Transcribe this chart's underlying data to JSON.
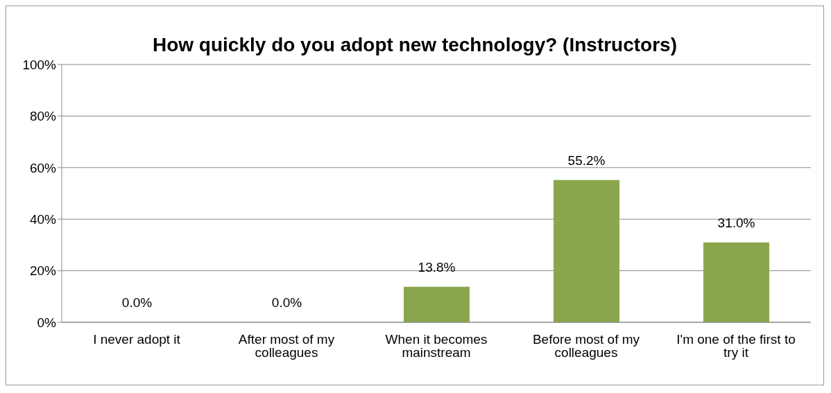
{
  "chart_data": {
    "type": "bar",
    "title": "How quickly do you adopt new technology? (Instructors)",
    "categories": [
      "I never adopt it",
      "After most of my colleagues",
      "When it becomes mainstream",
      "Before most of my colleagues",
      "I'm one of the first to try it"
    ],
    "values": [
      0,
      0,
      13.8,
      55.2,
      31.0
    ],
    "value_labels": [
      "0.0%",
      "0.0%",
      "13.8%",
      "55.2%",
      "31.0%"
    ],
    "color": "#8aa64d",
    "ylim": [
      0,
      100
    ],
    "yticks": [
      {
        "value": 0,
        "label": "0%"
      },
      {
        "value": 20,
        "label": "20%"
      },
      {
        "value": 40,
        "label": "40%"
      },
      {
        "value": 60,
        "label": "60%"
      },
      {
        "value": 80,
        "label": "80%"
      },
      {
        "value": 100,
        "label": "100%"
      }
    ],
    "grid": "y"
  }
}
